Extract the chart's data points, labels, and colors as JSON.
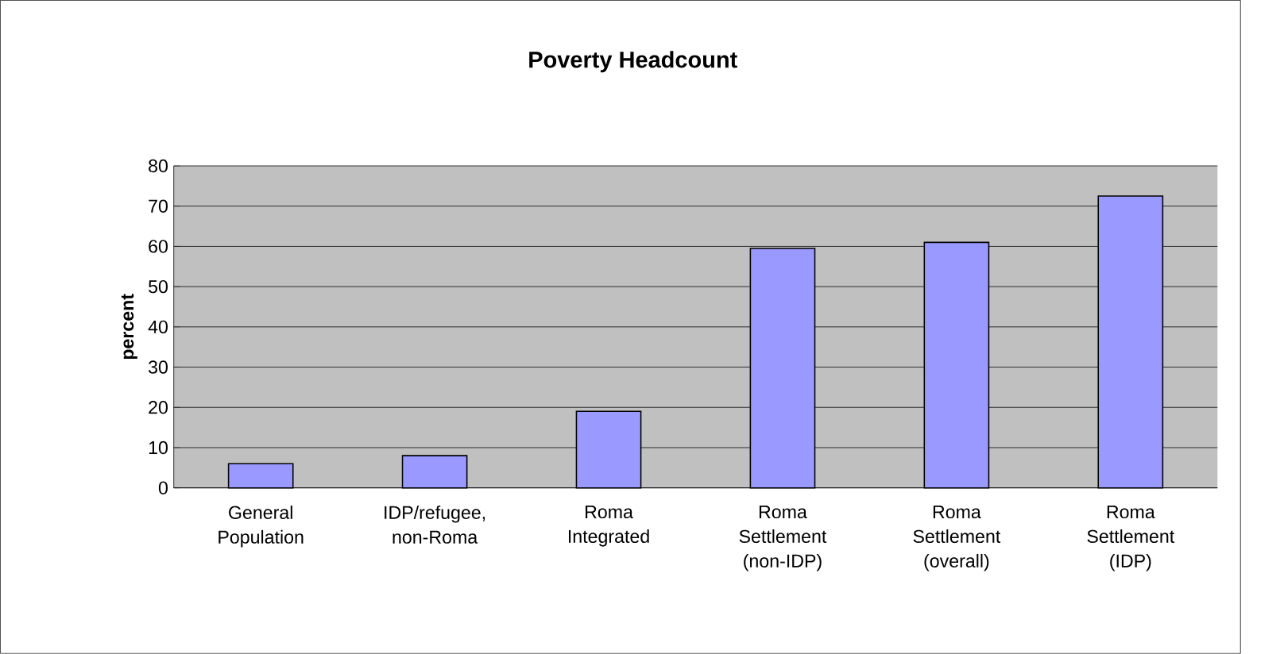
{
  "chart_data": {
    "type": "bar",
    "title": "Poverty Headcount",
    "ylabel": "percent",
    "categories": [
      "General Population",
      "IDP/refugee, non-Roma",
      "Roma Integrated",
      "Roma Settlement (non-IDP)",
      "Roma Settlement (overall)",
      "Roma Settlement (IDP)"
    ],
    "values": [
      6,
      8,
      19,
      59.5,
      61,
      72.5
    ],
    "color": "#9999ff",
    "ylim": [
      0,
      80
    ],
    "yticks": [
      0,
      10,
      20,
      30,
      40,
      50,
      60,
      70,
      80
    ],
    "grid": "y"
  }
}
